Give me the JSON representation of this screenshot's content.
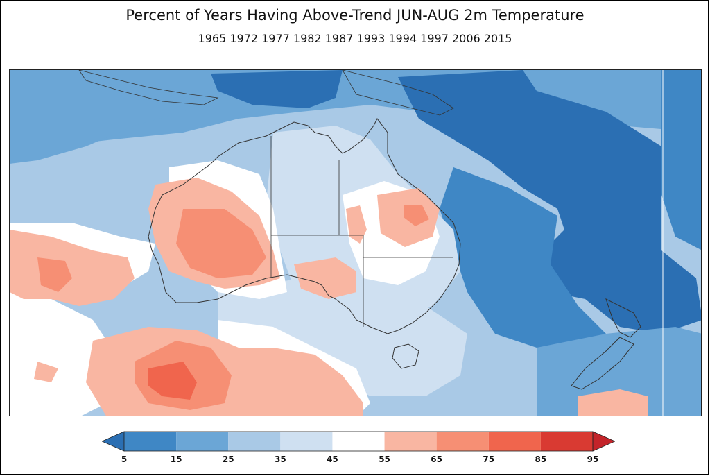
{
  "title": "Percent of Years Having Above-Trend JUN-AUG 2m Temperature",
  "subtitle": "1965 1972 1977 1982 1987 1993 1994 1997 2006 2015",
  "legend": {
    "ticks": [
      "5",
      "15",
      "25",
      "35",
      "45",
      "55",
      "65",
      "75",
      "85",
      "95"
    ],
    "colors": [
      "#2b6fb3",
      "#3f87c5",
      "#6ba6d6",
      "#a9c9e6",
      "#cfe0f1",
      "#ffffff",
      "#f9b6a2",
      "#f68f74",
      "#f0654d",
      "#d93a32",
      "#c3242a"
    ]
  }
}
